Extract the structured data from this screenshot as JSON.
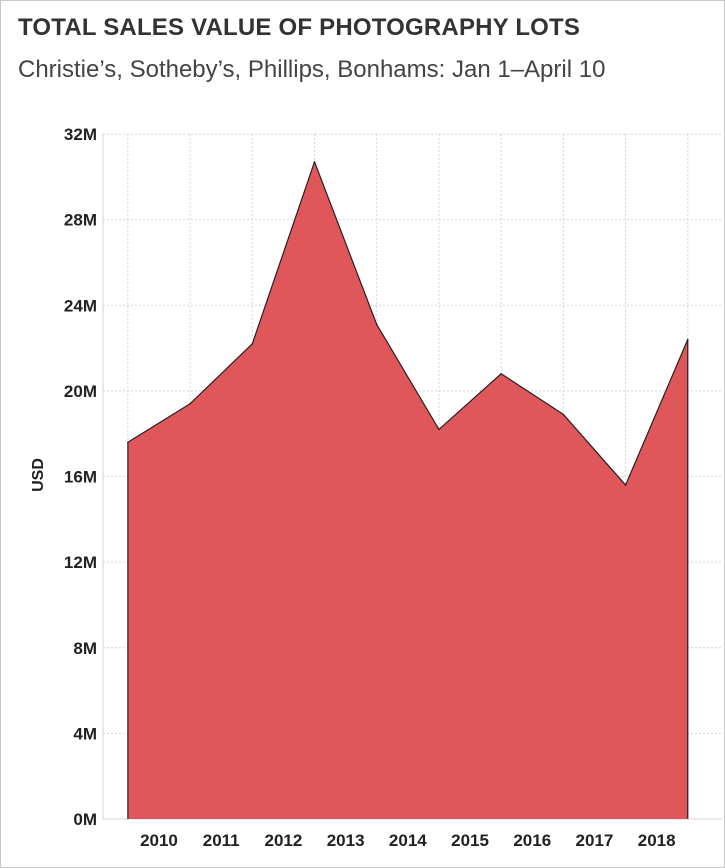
{
  "header": {
    "title": "TOTAL SALES VALUE OF PHOTOGRAPHY LOTS",
    "subtitle": "Christie’s, Sotheby’s, Phillips, Bonhams: Jan 1–April 10"
  },
  "colors": {
    "area_fill": "#e0575b",
    "area_stroke": "#222222",
    "grid": "#d4d4d4",
    "text": "#222222"
  },
  "chart_data": {
    "type": "area",
    "title": "TOTAL SALES VALUE OF PHOTOGRAPHY LOTS",
    "subtitle": "Christie’s, Sotheby’s, Phillips, Bonhams: Jan 1–April 10",
    "xlabel": "",
    "ylabel": "USD",
    "ylim": [
      0,
      32000000
    ],
    "yticks": [
      0,
      4000000,
      8000000,
      12000000,
      16000000,
      20000000,
      24000000,
      28000000,
      32000000
    ],
    "ytick_labels": [
      "0M",
      "4M",
      "8M",
      "12M",
      "16M",
      "20M",
      "24M",
      "28M",
      "32M"
    ],
    "x_tick_labels": [
      "2010",
      "2011",
      "2012",
      "2013",
      "2014",
      "2015",
      "2016",
      "2017",
      "2018"
    ],
    "grid": true,
    "x": [
      2009.5,
      2010.5,
      2011.5,
      2012.5,
      2013.5,
      2014.5,
      2015.5,
      2016.5,
      2017.5,
      2018.5
    ],
    "values": [
      17600000,
      19400000,
      22200000,
      30700000,
      23100000,
      18200000,
      20800000,
      18900000,
      15600000,
      22400000
    ]
  }
}
